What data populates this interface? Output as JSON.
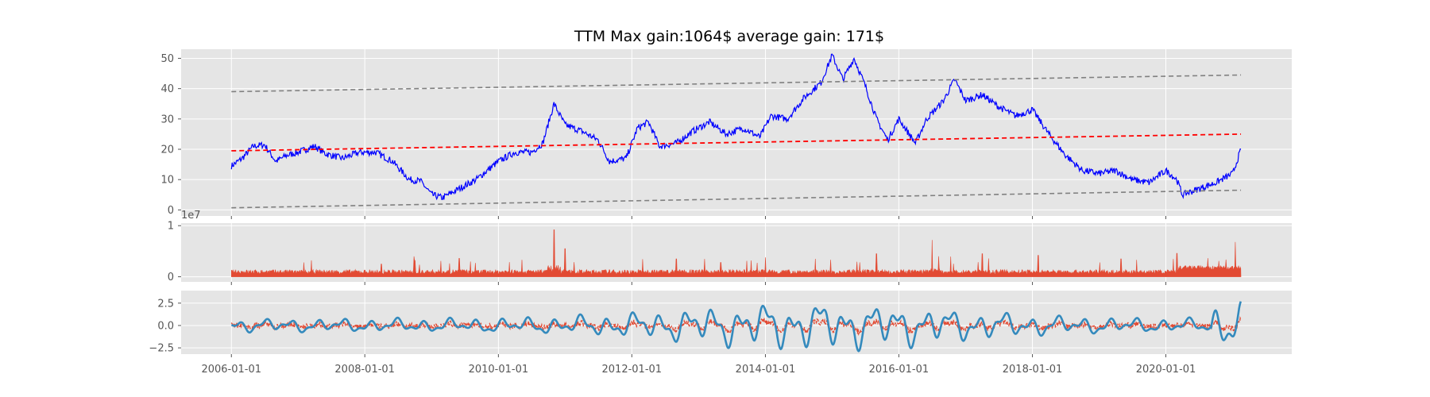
{
  "chart_data": [
    {
      "type": "line",
      "title": "TTM Max gain:1064$  average gain: 171$",
      "xlabel": "",
      "ylabel": "",
      "xlim": [
        "2005-04-01",
        "2021-11-20"
      ],
      "ylim": [
        -2,
        53
      ],
      "yticks": [
        0,
        10,
        20,
        30,
        40,
        50
      ],
      "grid": true,
      "series": [
        {
          "role": "price",
          "color": "#0000ff",
          "points": [
            [
              "2006-01-01",
              14.5
            ],
            [
              "2006-03-01",
              17
            ],
            [
              "2006-05-01",
              21
            ],
            [
              "2006-07-01",
              21.5
            ],
            [
              "2006-09-01",
              16
            ],
            [
              "2006-11-01",
              18
            ],
            [
              "2007-01-01",
              19
            ],
            [
              "2007-04-01",
              21
            ],
            [
              "2007-06-01",
              18.5
            ],
            [
              "2007-09-01",
              17
            ],
            [
              "2007-12-01",
              19
            ],
            [
              "2008-03-01",
              19
            ],
            [
              "2008-06-01",
              16
            ],
            [
              "2008-09-01",
              10
            ],
            [
              "2008-11-01",
              9.5
            ],
            [
              "2009-01-01",
              5
            ],
            [
              "2009-03-01",
              4
            ],
            [
              "2009-06-01",
              7
            ],
            [
              "2009-09-01",
              10
            ],
            [
              "2010-01-01",
              16
            ],
            [
              "2010-04-01",
              19
            ],
            [
              "2010-07-01",
              19
            ],
            [
              "2010-09-01",
              22
            ],
            [
              "2010-11-01",
              35
            ],
            [
              "2011-01-01",
              28
            ],
            [
              "2011-04-01",
              26
            ],
            [
              "2011-07-01",
              23
            ],
            [
              "2011-09-01",
              16
            ],
            [
              "2011-12-01",
              17
            ],
            [
              "2012-02-01",
              27
            ],
            [
              "2012-04-01",
              29
            ],
            [
              "2012-06-01",
              21
            ],
            [
              "2012-09-01",
              22
            ],
            [
              "2012-12-01",
              26
            ],
            [
              "2013-03-01",
              29
            ],
            [
              "2013-06-01",
              25
            ],
            [
              "2013-09-01",
              27
            ],
            [
              "2013-12-01",
              24
            ],
            [
              "2014-02-01",
              31
            ],
            [
              "2014-05-01",
              30
            ],
            [
              "2014-08-01",
              37
            ],
            [
              "2014-11-01",
              42
            ],
            [
              "2015-01-01",
              51
            ],
            [
              "2015-03-01",
              43
            ],
            [
              "2015-05-01",
              50
            ],
            [
              "2015-07-01",
              41
            ],
            [
              "2015-09-01",
              30
            ],
            [
              "2015-11-01",
              23
            ],
            [
              "2016-01-01",
              30
            ],
            [
              "2016-04-01",
              22
            ],
            [
              "2016-06-01",
              30
            ],
            [
              "2016-09-01",
              36
            ],
            [
              "2016-11-01",
              43
            ],
            [
              "2017-01-01",
              36
            ],
            [
              "2017-04-01",
              38
            ],
            [
              "2017-07-01",
              34
            ],
            [
              "2017-10-01",
              31
            ],
            [
              "2018-01-01",
              33
            ],
            [
              "2018-04-01",
              25
            ],
            [
              "2018-07-01",
              18
            ],
            [
              "2018-10-01",
              13
            ],
            [
              "2019-01-01",
              12
            ],
            [
              "2019-04-01",
              13
            ],
            [
              "2019-07-01",
              10
            ],
            [
              "2019-10-01",
              9
            ],
            [
              "2020-01-01",
              13
            ],
            [
              "2020-03-01",
              10
            ],
            [
              "2020-04-01",
              5
            ],
            [
              "2020-07-01",
              7
            ],
            [
              "2020-10-01",
              9
            ],
            [
              "2021-01-01",
              12
            ],
            [
              "2021-02-15",
              20
            ]
          ]
        },
        {
          "role": "trend",
          "color": "#ff0000",
          "dashed": true,
          "start": [
            "2006-01-01",
            19.5
          ],
          "end": [
            "2021-02-15",
            25
          ]
        },
        {
          "role": "upper band",
          "color": "#808080",
          "dashed": true,
          "start": [
            "2006-01-01",
            39
          ],
          "end": [
            "2021-02-15",
            44.5
          ]
        },
        {
          "role": "lower band",
          "color": "#808080",
          "dashed": true,
          "start": [
            "2006-01-01",
            0.7
          ],
          "end": [
            "2021-02-15",
            6.5
          ]
        }
      ]
    },
    {
      "type": "area",
      "ylim": [
        -0.1,
        1.05
      ],
      "yticks": [
        0,
        1
      ],
      "offset_label": "1e7",
      "color": "#e24a33",
      "grid": true,
      "baseline": 0.05,
      "spikes": [
        [
          "2007-02-01",
          0.28
        ],
        [
          "2008-04-01",
          0.25
        ],
        [
          "2008-10-01",
          0.32
        ],
        [
          "2009-06-01",
          0.36
        ],
        [
          "2010-11-01",
          0.92
        ],
        [
          "2011-01-01",
          0.55
        ],
        [
          "2012-09-01",
          0.35
        ],
        [
          "2013-05-01",
          0.28
        ],
        [
          "2014-01-01",
          0.38
        ],
        [
          "2014-10-01",
          0.35
        ],
        [
          "2015-09-01",
          0.45
        ],
        [
          "2016-07-01",
          0.72
        ],
        [
          "2017-04-01",
          0.45
        ],
        [
          "2018-02-01",
          0.42
        ],
        [
          "2019-05-01",
          0.35
        ],
        [
          "2020-03-01",
          0.46
        ],
        [
          "2021-01-15",
          0.68
        ]
      ]
    },
    {
      "type": "line",
      "ylim": [
        -3.2,
        3.9
      ],
      "yticks": [
        -2.5,
        0.0,
        2.5
      ],
      "ytick_labels": [
        "−2.5",
        "0.0",
        "2.5"
      ],
      "grid": true,
      "series": [
        {
          "role": "oscillator",
          "color": "#e24a33",
          "dashed": true
        },
        {
          "role": "signal",
          "color": "#348abd"
        }
      ],
      "xticks": [
        "2006-01-01",
        "2008-01-01",
        "2010-01-01",
        "2012-01-01",
        "2014-01-01",
        "2016-01-01",
        "2018-01-01",
        "2020-01-01"
      ]
    }
  ]
}
